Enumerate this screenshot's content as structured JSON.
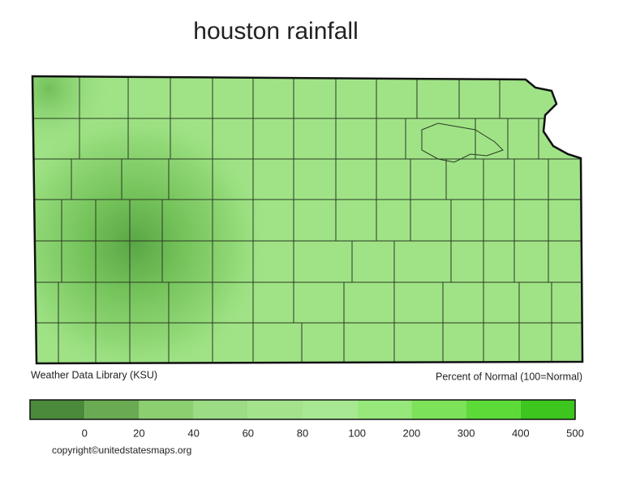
{
  "title": "houston rainfall",
  "map": {
    "source": "Weather Data Library (KSU)",
    "units": "Percent of Normal (100=Normal)"
  },
  "legend": {
    "ticks": [
      0,
      20,
      40,
      60,
      80,
      100,
      200,
      300,
      400,
      500
    ],
    "colors": [
      "#4a8a3a",
      "#6aaa52",
      "#8ccf70",
      "#9cdc84",
      "#a4e38c",
      "#a8e892",
      "#96e87a",
      "#7ce25a",
      "#5cdb38",
      "#3cc61e"
    ]
  },
  "footer": {
    "copyright": "copyright©unitedstatesmaps.org"
  }
}
